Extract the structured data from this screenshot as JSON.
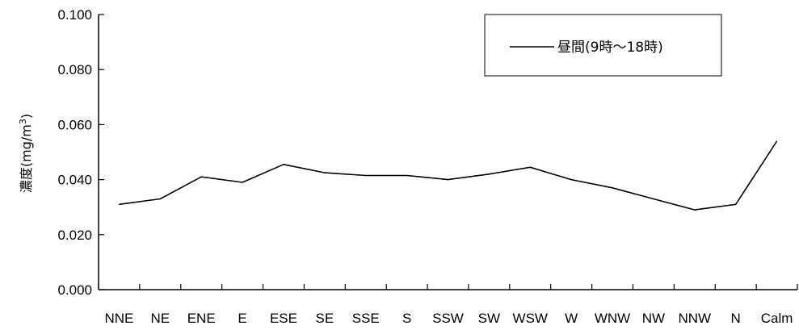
{
  "chart_data": {
    "type": "line",
    "ylabel": "濃度(mg/m",
    "ylabel_sup": "3",
    "ylabel_close": ")",
    "ylim": [
      0,
      0.1
    ],
    "y_ticks": [
      0,
      0.02,
      0.04,
      0.06,
      0.08,
      0.1
    ],
    "y_tick_labels": [
      "0.000",
      "0.020",
      "0.040",
      "0.060",
      "0.080",
      "0.100"
    ],
    "categories": [
      "NNE",
      "NE",
      "ENE",
      "E",
      "ESE",
      "SE",
      "SSE",
      "S",
      "SSW",
      "SW",
      "WSW",
      "W",
      "WNW",
      "NW",
      "NNW",
      "N",
      "Calm"
    ],
    "series": [
      {
        "name": "昼間(9時～18時)",
        "values": [
          0.031,
          0.033,
          0.041,
          0.039,
          0.0455,
          0.0425,
          0.0415,
          0.0415,
          0.04,
          0.042,
          0.0445,
          0.04,
          0.037,
          0.033,
          0.029,
          0.031,
          0.054
        ]
      }
    ],
    "legend_position": "top-right",
    "grid": false,
    "colors": {
      "line": "#000000",
      "axis": "#000000",
      "background": "#ffffff"
    }
  }
}
